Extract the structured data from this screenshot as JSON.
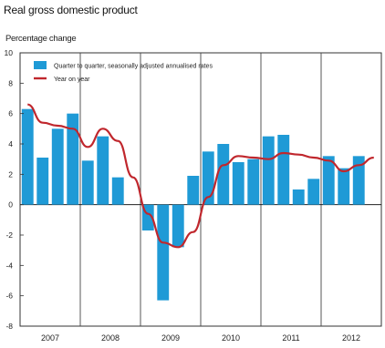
{
  "chart_data": {
    "type": "bar",
    "title": "Real gross domestic product",
    "ylabel": "Percentage change",
    "ylim": [
      -8,
      10
    ],
    "yticks": [
      -8,
      -6,
      -4,
      -2,
      0,
      2,
      4,
      6,
      8,
      10
    ],
    "year_labels": [
      "2007",
      "2008",
      "2009",
      "2010",
      "2011",
      "2012"
    ],
    "quarters": [
      "2007Q1",
      "2007Q2",
      "2007Q3",
      "2007Q4",
      "2008Q1",
      "2008Q2",
      "2008Q3",
      "2008Q4",
      "2009Q1",
      "2009Q2",
      "2009Q3",
      "2009Q4",
      "2010Q1",
      "2010Q2",
      "2010Q3",
      "2010Q4",
      "2011Q1",
      "2011Q2",
      "2011Q3",
      "2011Q4",
      "2012Q1",
      "2012Q2",
      "2012Q3",
      "2012Q4"
    ],
    "grid": "vertical year separators",
    "legend_position": "top-left",
    "series": [
      {
        "name": "Quarter to quarter, seasonally adjusted annualised rates",
        "kind": "bar",
        "color": "#1f9ad6",
        "values": [
          6.3,
          3.1,
          5.0,
          6.0,
          2.9,
          4.5,
          1.8,
          null,
          -1.7,
          -6.3,
          -2.8,
          1.9,
          3.5,
          4.0,
          2.8,
          3.0,
          4.5,
          4.6,
          1.0,
          1.7,
          3.2,
          2.4,
          3.2,
          null
        ]
      },
      {
        "name": "Year on year",
        "kind": "line",
        "color": "#c0272d",
        "values": [
          6.6,
          5.4,
          5.2,
          5.0,
          3.8,
          5.0,
          4.2,
          1.8,
          -0.6,
          -2.5,
          -2.8,
          -1.8,
          0.5,
          2.6,
          3.2,
          3.1,
          3.0,
          3.4,
          3.3,
          3.1,
          2.9,
          2.2,
          2.6,
          3.1
        ]
      }
    ]
  }
}
